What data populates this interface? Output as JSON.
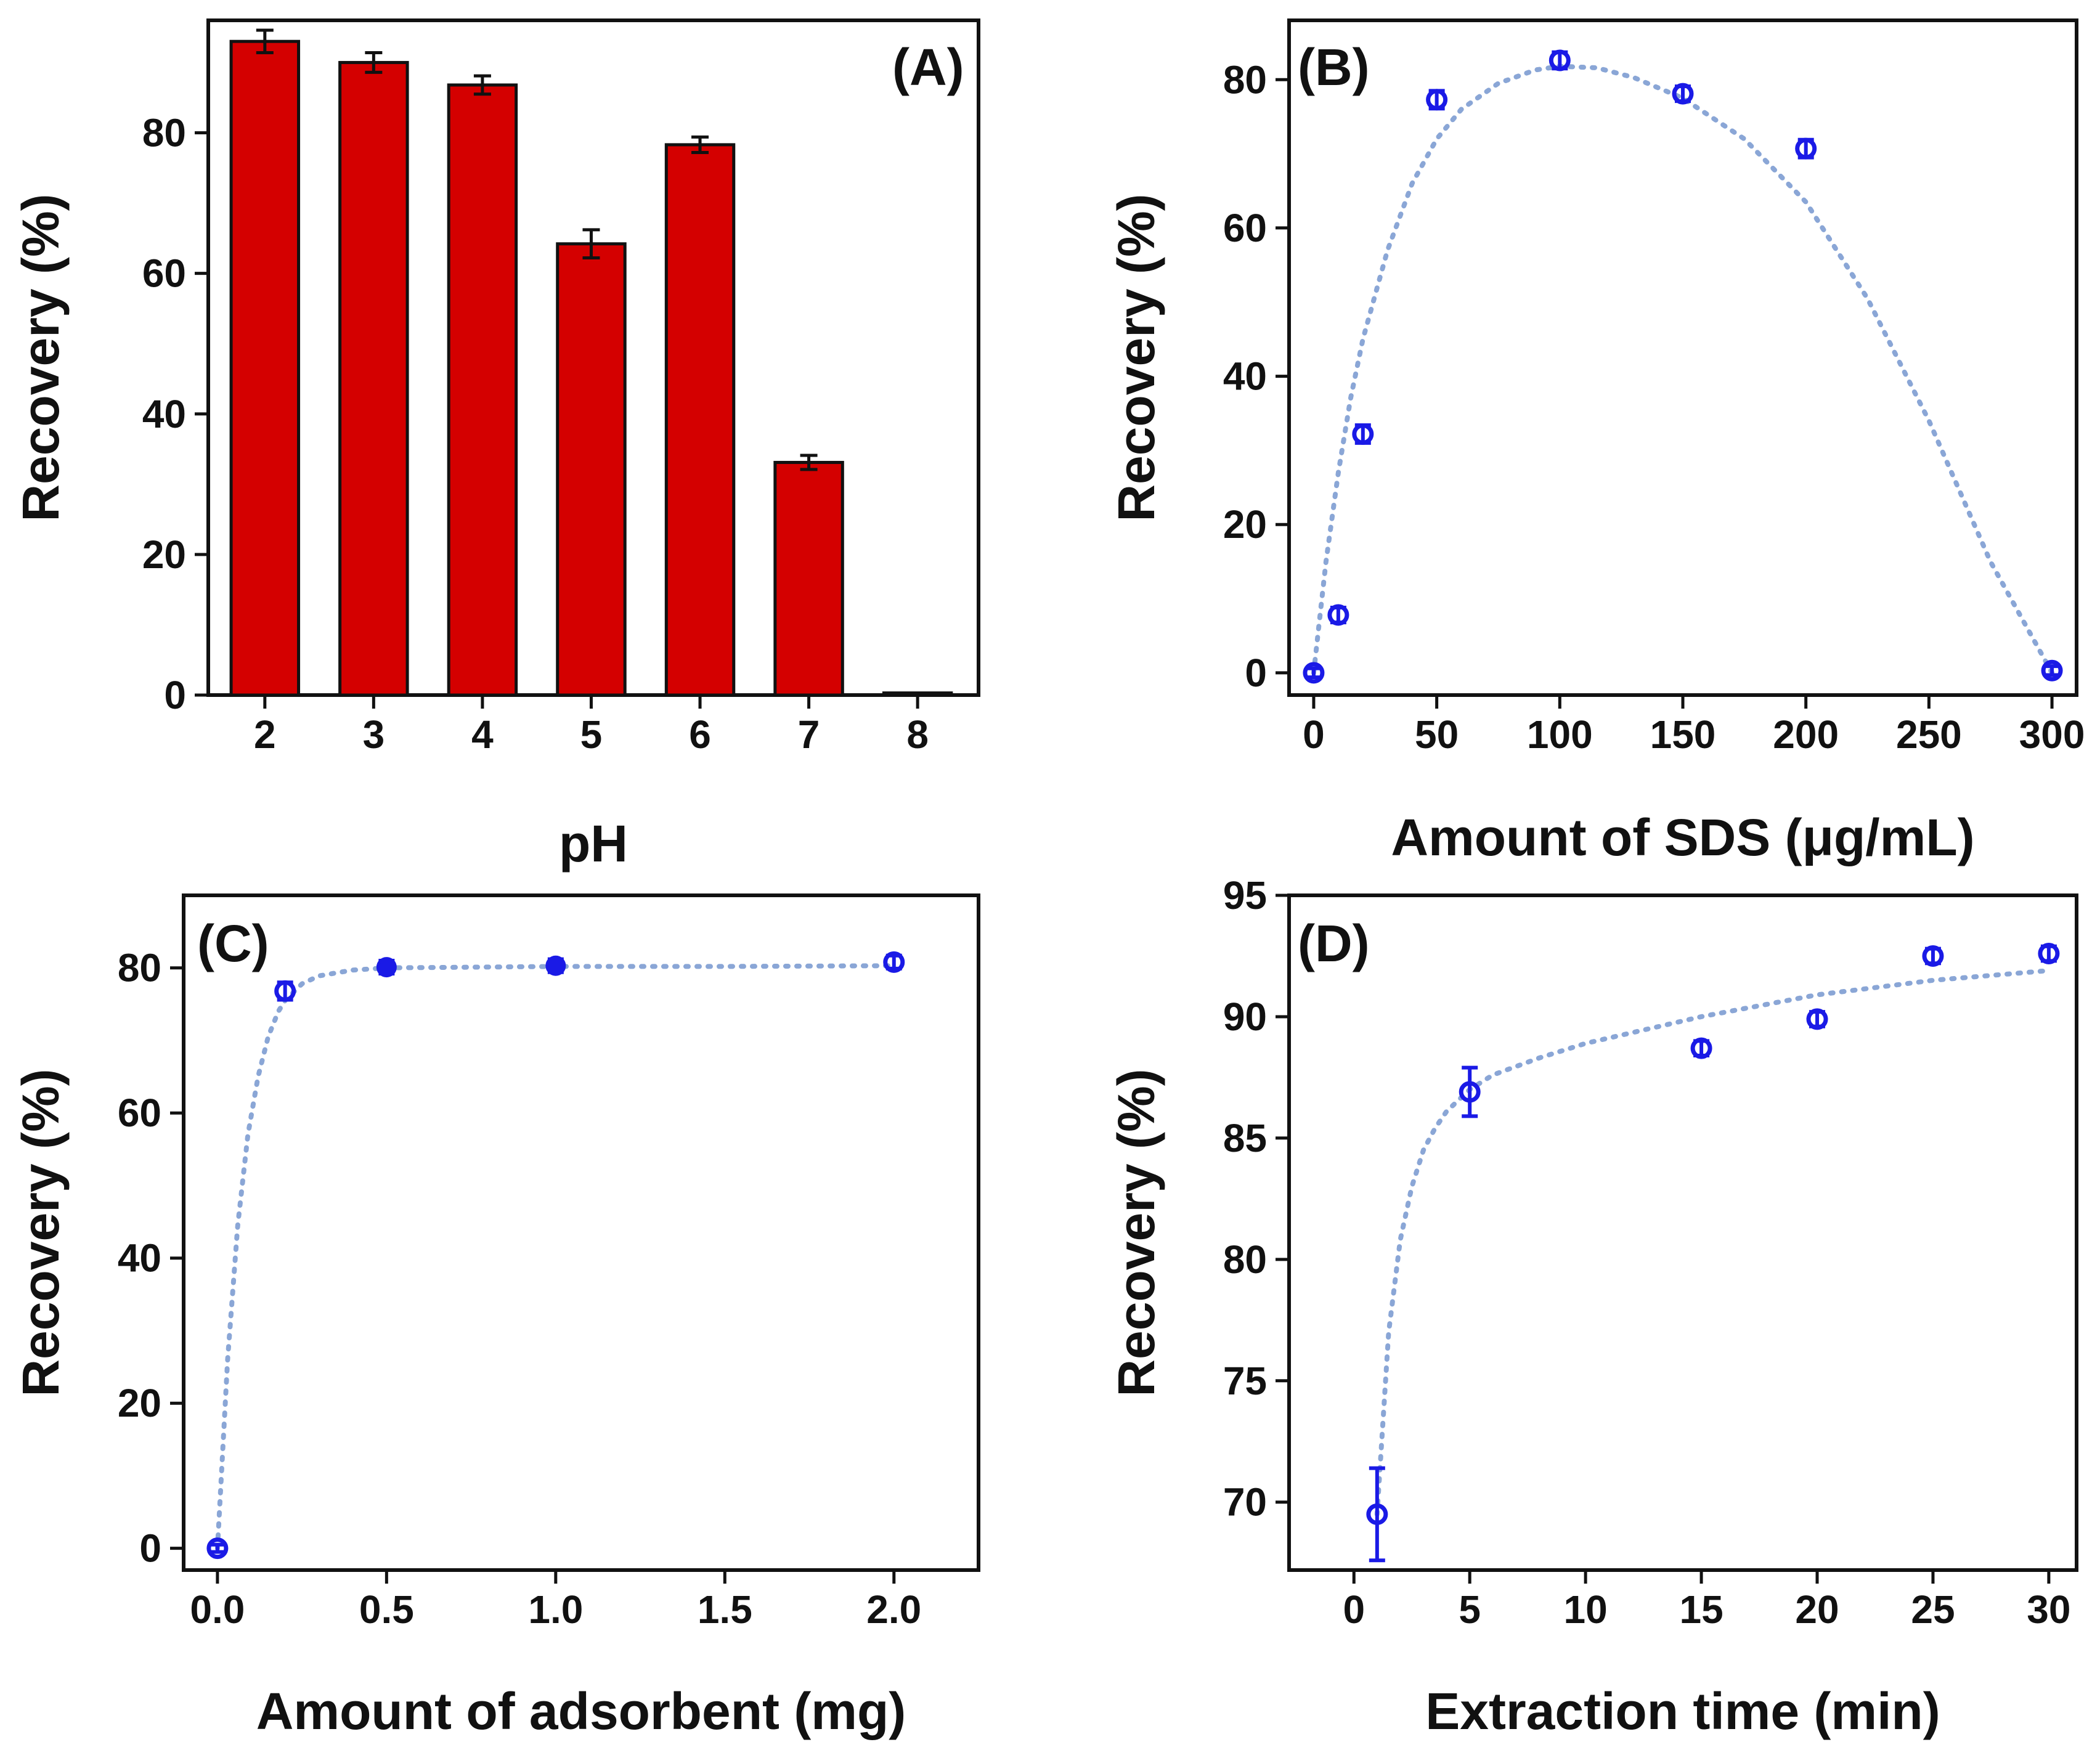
{
  "figure": "Recovery optimization panels",
  "colors": {
    "bar": "#d40000",
    "marker": "#1a1ae6",
    "fit": "#8aa6d6",
    "axis": "#111111"
  },
  "chart_data": [
    {
      "id": "A",
      "panel_label": "(A)",
      "type": "bar",
      "xlabel": "pH",
      "ylabel": "Recovery (%)",
      "categories": [
        "2",
        "3",
        "4",
        "5",
        "6",
        "7",
        "8"
      ],
      "values": [
        93,
        90,
        86.8,
        64.2,
        78.3,
        33.1,
        0.3
      ],
      "errors": [
        1.6,
        1.4,
        1.3,
        2.0,
        1.1,
        1.0,
        0
      ],
      "ylim": [
        0,
        96
      ],
      "yticks": [
        0,
        20,
        40,
        60,
        80
      ]
    },
    {
      "id": "B",
      "panel_label": "(B)",
      "type": "scatter",
      "xlabel": "Amount of SDS (μg/mL)",
      "ylabel": "Recovery (%)",
      "x": [
        0,
        10,
        20,
        50,
        100,
        150,
        200,
        300
      ],
      "y": [
        0,
        7.8,
        32.2,
        77.3,
        82.6,
        78.1,
        70.7,
        0.3
      ],
      "errors": [
        0.6,
        1.0,
        1.2,
        1.2,
        1.1,
        1.0,
        1.2,
        0.6
      ],
      "filled": [
        false,
        false,
        false,
        false,
        false,
        false,
        false,
        false
      ],
      "xlim": [
        -10,
        310
      ],
      "ylim": [
        -3,
        88
      ],
      "xticks": [
        0,
        50,
        100,
        150,
        200,
        250,
        300
      ],
      "yticks": [
        0,
        20,
        40,
        60,
        80
      ],
      "fit_curve": {
        "x": [
          0,
          5,
          10,
          15,
          20,
          30,
          40,
          50,
          60,
          75,
          90,
          100,
          115,
          130,
          150,
          175,
          200,
          225,
          250,
          275,
          300
        ],
        "y": [
          0,
          15,
          27,
          37,
          45,
          57,
          66,
          72,
          76,
          79.5,
          81.3,
          81.8,
          81.6,
          80.3,
          77.5,
          72,
          63.5,
          50.5,
          34,
          15,
          0
        ]
      }
    },
    {
      "id": "C",
      "panel_label": "(C)",
      "type": "scatter",
      "xlabel": "Amount of adsorbent (mg)",
      "ylabel": "Recovery (%)",
      "x": [
        0.0,
        0.2,
        0.5,
        1.0,
        2.0
      ],
      "y": [
        0,
        76.8,
        80.1,
        80.3,
        80.8
      ],
      "errors": [
        0.5,
        1.2,
        0.9,
        0.9,
        0.9
      ],
      "filled": [
        false,
        false,
        true,
        true,
        false
      ],
      "xlim": [
        -0.1,
        2.25
      ],
      "ylim": [
        -3,
        90
      ],
      "xticks": [
        0.0,
        0.5,
        1.0,
        1.5,
        2.0
      ],
      "xtick_labels": [
        "0.0",
        "0.5",
        "1.0",
        "1.5",
        "2.0"
      ],
      "yticks": [
        0,
        20,
        40,
        60,
        80
      ],
      "fit_curve": {
        "x": [
          0,
          0.03,
          0.06,
          0.09,
          0.12,
          0.15,
          0.18,
          0.2,
          0.25,
          0.3,
          0.4,
          0.5,
          0.75,
          1.0,
          1.5,
          2.0
        ],
        "y": [
          0,
          26,
          44.5,
          57,
          65,
          70.5,
          74,
          75.5,
          77.8,
          78.9,
          79.7,
          80,
          80.1,
          80.2,
          80.2,
          80.3
        ]
      }
    },
    {
      "id": "D",
      "panel_label": "(D)",
      "type": "scatter",
      "xlabel": "Extraction time (min)",
      "ylabel": "Recovery (%)",
      "x": [
        1,
        5,
        15,
        20,
        25,
        30
      ],
      "y": [
        69.5,
        86.9,
        88.7,
        89.9,
        92.5,
        92.6
      ],
      "errors": [
        1.9,
        1.0,
        0.3,
        0.3,
        0.3,
        0.3
      ],
      "filled": [
        false,
        false,
        false,
        false,
        false,
        false
      ],
      "xlim": [
        -2.8,
        31.2
      ],
      "ylim": [
        67.2,
        95
      ],
      "xticks": [
        0,
        5,
        10,
        15,
        20,
        25,
        30
      ],
      "yticks": [
        70,
        75,
        80,
        85,
        90,
        95
      ],
      "fit_curve": {
        "x": [
          1,
          1.5,
          2,
          2.5,
          3,
          3.5,
          4,
          5,
          6,
          8,
          10,
          15,
          20,
          25,
          30
        ],
        "y": [
          69.5,
          77,
          80.8,
          83,
          84.5,
          85.4,
          86.1,
          87,
          87.6,
          88.3,
          88.9,
          90,
          90.9,
          91.5,
          91.9
        ]
      }
    }
  ]
}
